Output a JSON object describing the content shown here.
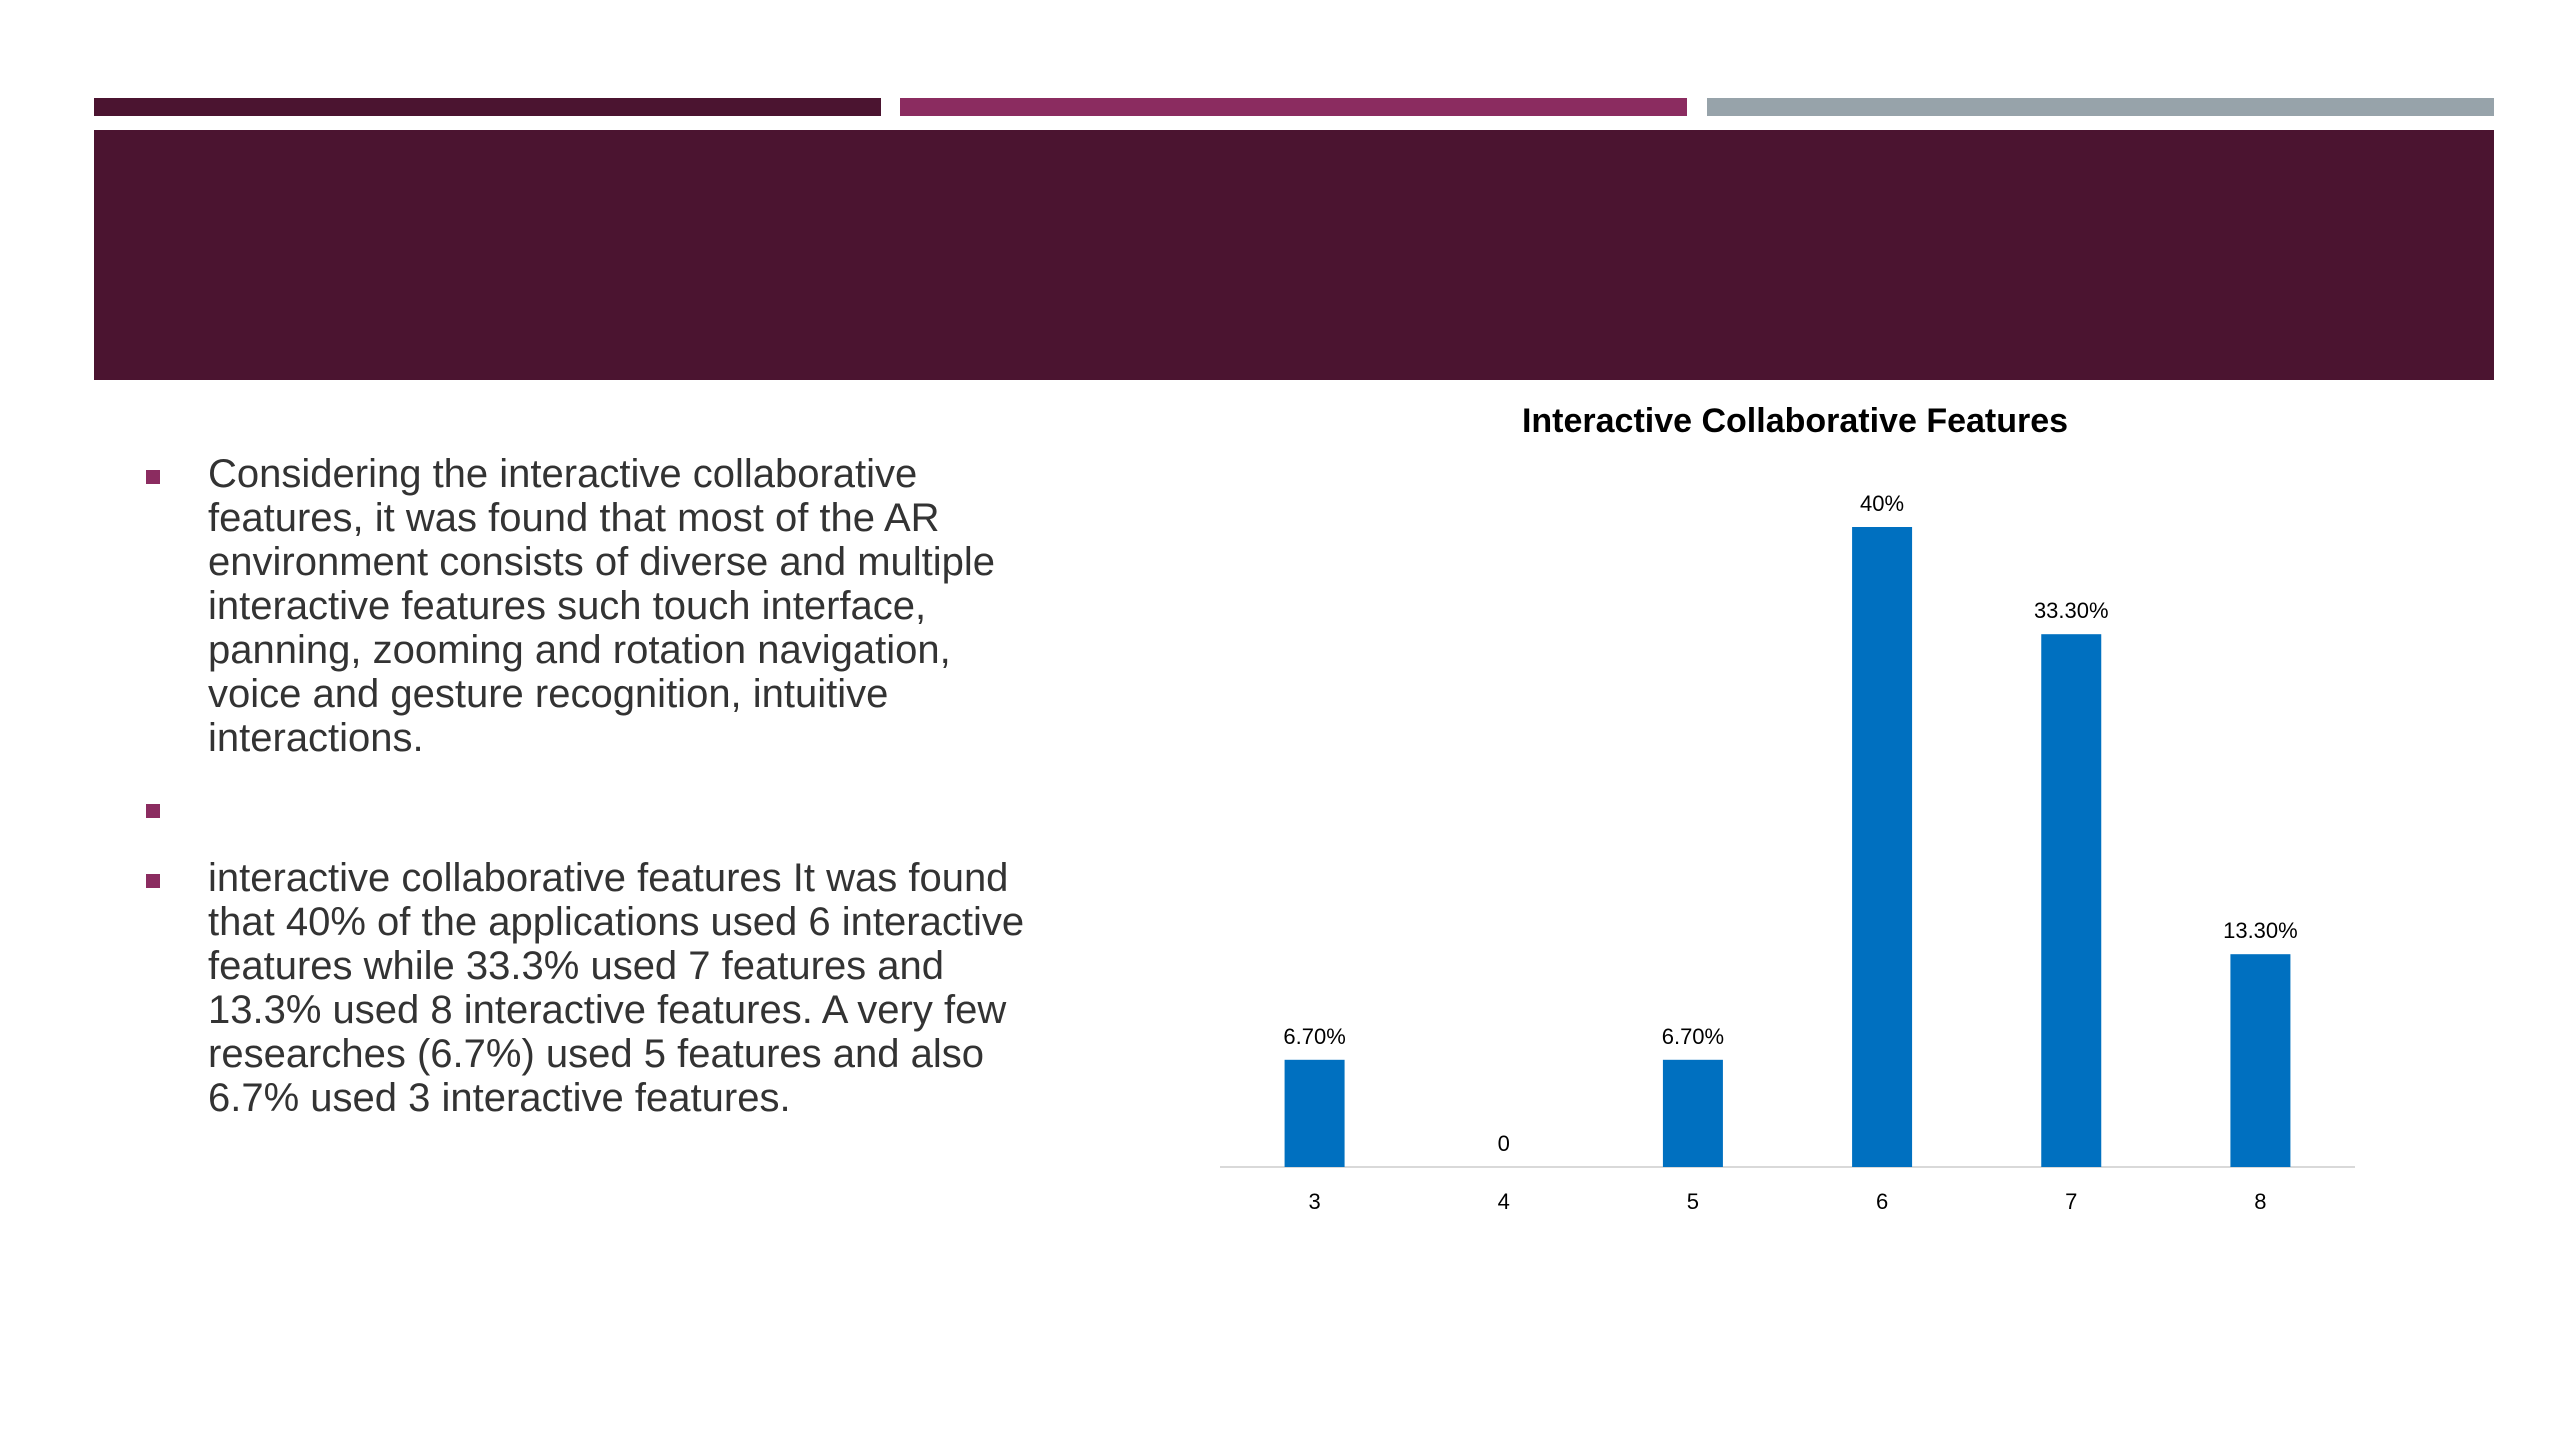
{
  "colors": {
    "stripe_1": "#4B1430",
    "stripe_2": "#8B2C60",
    "stripe_3": "#97A3AA",
    "title_bar": "#4B1430",
    "bullet_marker": "#8B2C60",
    "bar": "#0070C0",
    "axis": "#D9D9D9",
    "label": "#000000"
  },
  "bullets": [
    {
      "text": "Considering the interactive collaborative features, it was found that most of the AR environment consists of diverse and multiple interactive features such touch interface, panning, zooming and rotation navigation, voice and gesture recognition, intuitive interactions."
    },
    {
      "text": ""
    },
    {
      "text": "interactive collaborative features It was found that 40% of the applications used 6 interactive features while 33.3% used 7 features and 13.3% used 8 interactive features. A very few researches (6.7%) used 5 features and also 6.7% used 3 interactive features."
    }
  ],
  "chart_data": {
    "type": "bar",
    "title": "Interactive Collaborative Features",
    "categories": [
      "3",
      "4",
      "5",
      "6",
      "7",
      "8"
    ],
    "values": [
      6.7,
      0,
      6.7,
      40,
      33.3,
      13.3
    ],
    "data_labels": [
      "6.70%",
      "0",
      "6.70%",
      "40%",
      "33.30%",
      "13.30%"
    ],
    "xlabel": "",
    "ylabel": "",
    "ylim": [
      0,
      40
    ],
    "grid": false,
    "legend": "none",
    "value_axis_shown": false
  }
}
